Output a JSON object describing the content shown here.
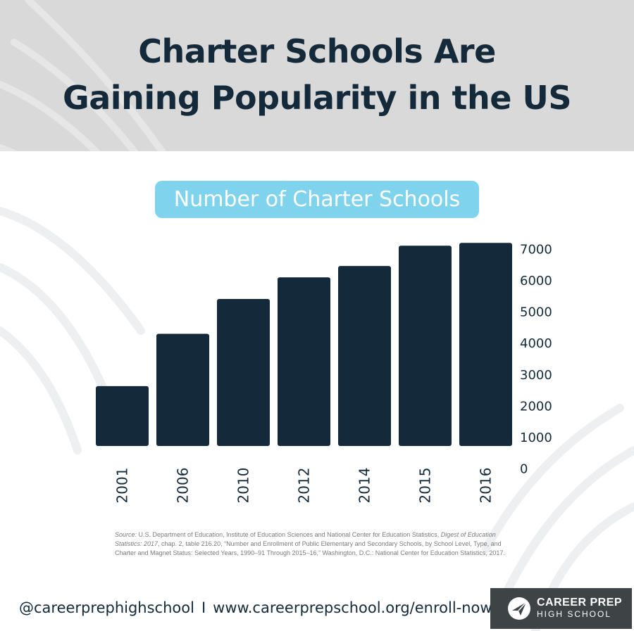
{
  "page": {
    "title_line1": "Charter Schools Are",
    "title_line2": "Gaining Popularity in the US",
    "subtitle": "Number of Charter Schools"
  },
  "chart_data": {
    "type": "bar",
    "categories": [
      "2001",
      "2006",
      "2010",
      "2012",
      "2014",
      "2015",
      "2016"
    ],
    "values": [
      2650,
      4320,
      5430,
      6120,
      6480,
      7130,
      7220
    ],
    "title": "Number of Charter Schools",
    "xlabel": "",
    "ylabel": "",
    "ylim": [
      0,
      7000
    ],
    "yticks": [
      0,
      1000,
      2000,
      3000,
      4000,
      5000,
      6000,
      7000
    ],
    "yaxis_side": "right",
    "x_label_rotation": "vertical",
    "grid": false,
    "bar_color": "#142a3a"
  },
  "source": {
    "label": "Source:",
    "text1": " U.S. Department of Education, Institute of Education Sciences and National Center for Education Statistics, ",
    "italic1": "Digest of Education Statistics: 2017",
    "text2": ", chap. 2, table 216.20, “Number and Enrollment of Public Elementary and Secondary Schools, by School Level, Type, and Charter and Magnet Status: Selected Years, 1990–91 Through 2015–16,” Washington, D.C.: National Center for Education Statistics, 2017."
  },
  "footer": {
    "handle": "@careerprephighschool",
    "separator": "I",
    "url": "www.careerprepschool.org/enroll-now",
    "brand_name": "CAREER PREP",
    "brand_sub": "HIGH SCHOOL"
  },
  "colors": {
    "header_band": "#d9d9d9",
    "title": "#142a3a",
    "pill": "#7fd3ec",
    "bars": "#142a3a",
    "brand_box": "#3e4345"
  },
  "icons": [
    "palm-leaf-background",
    "paper-plane-logo-icon"
  ]
}
